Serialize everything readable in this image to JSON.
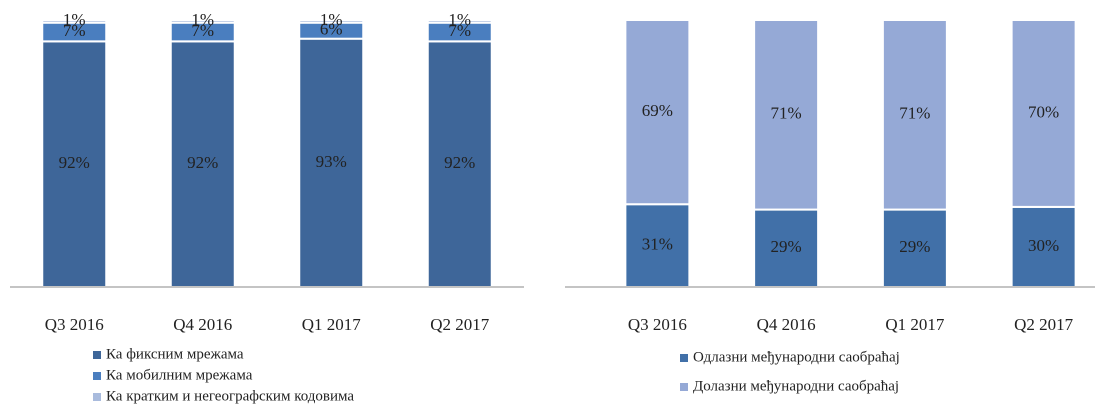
{
  "chart_data": [
    {
      "type": "stacked_bar",
      "categories": [
        "Q3 2016",
        "Q4 2016",
        "Q1 2017",
        "Q2 2017"
      ],
      "ylim": [
        0,
        100
      ],
      "series": [
        {
          "name": "Ка фиксним мрежама",
          "color": "#3e6699",
          "values": [
            92,
            92,
            93,
            92
          ],
          "value_labels": [
            "92%",
            "92%",
            "93%",
            "92%"
          ]
        },
        {
          "name": "Ка мобилним мрежама",
          "color": "#4a7ebf",
          "values": [
            7,
            7,
            6,
            7
          ],
          "value_labels": [
            "7%",
            "7%",
            "6%",
            "7%"
          ]
        },
        {
          "name": "Ка кратким и негеографским кодовима",
          "color": "#a9bbdd",
          "values": [
            1,
            1,
            1,
            1
          ],
          "value_labels": [
            "1%",
            "1%",
            "1%",
            "1%"
          ]
        }
      ]
    },
    {
      "type": "stacked_bar",
      "categories": [
        "Q3 2016",
        "Q4 2016",
        "Q1 2017",
        "Q2 2017"
      ],
      "ylim": [
        0,
        100
      ],
      "series": [
        {
          "name": "Одлазни међународни саобраћај",
          "color": "#4170a8",
          "values": [
            31,
            29,
            29,
            30
          ],
          "value_labels": [
            "31%",
            "29%",
            "29%",
            "30%"
          ]
        },
        {
          "name": "Долазни међународни саобраћај",
          "color": "#95a9d6",
          "values": [
            69,
            71,
            71,
            70
          ],
          "value_labels": [
            "69%",
            "71%",
            "71%",
            "70%"
          ]
        }
      ]
    }
  ]
}
